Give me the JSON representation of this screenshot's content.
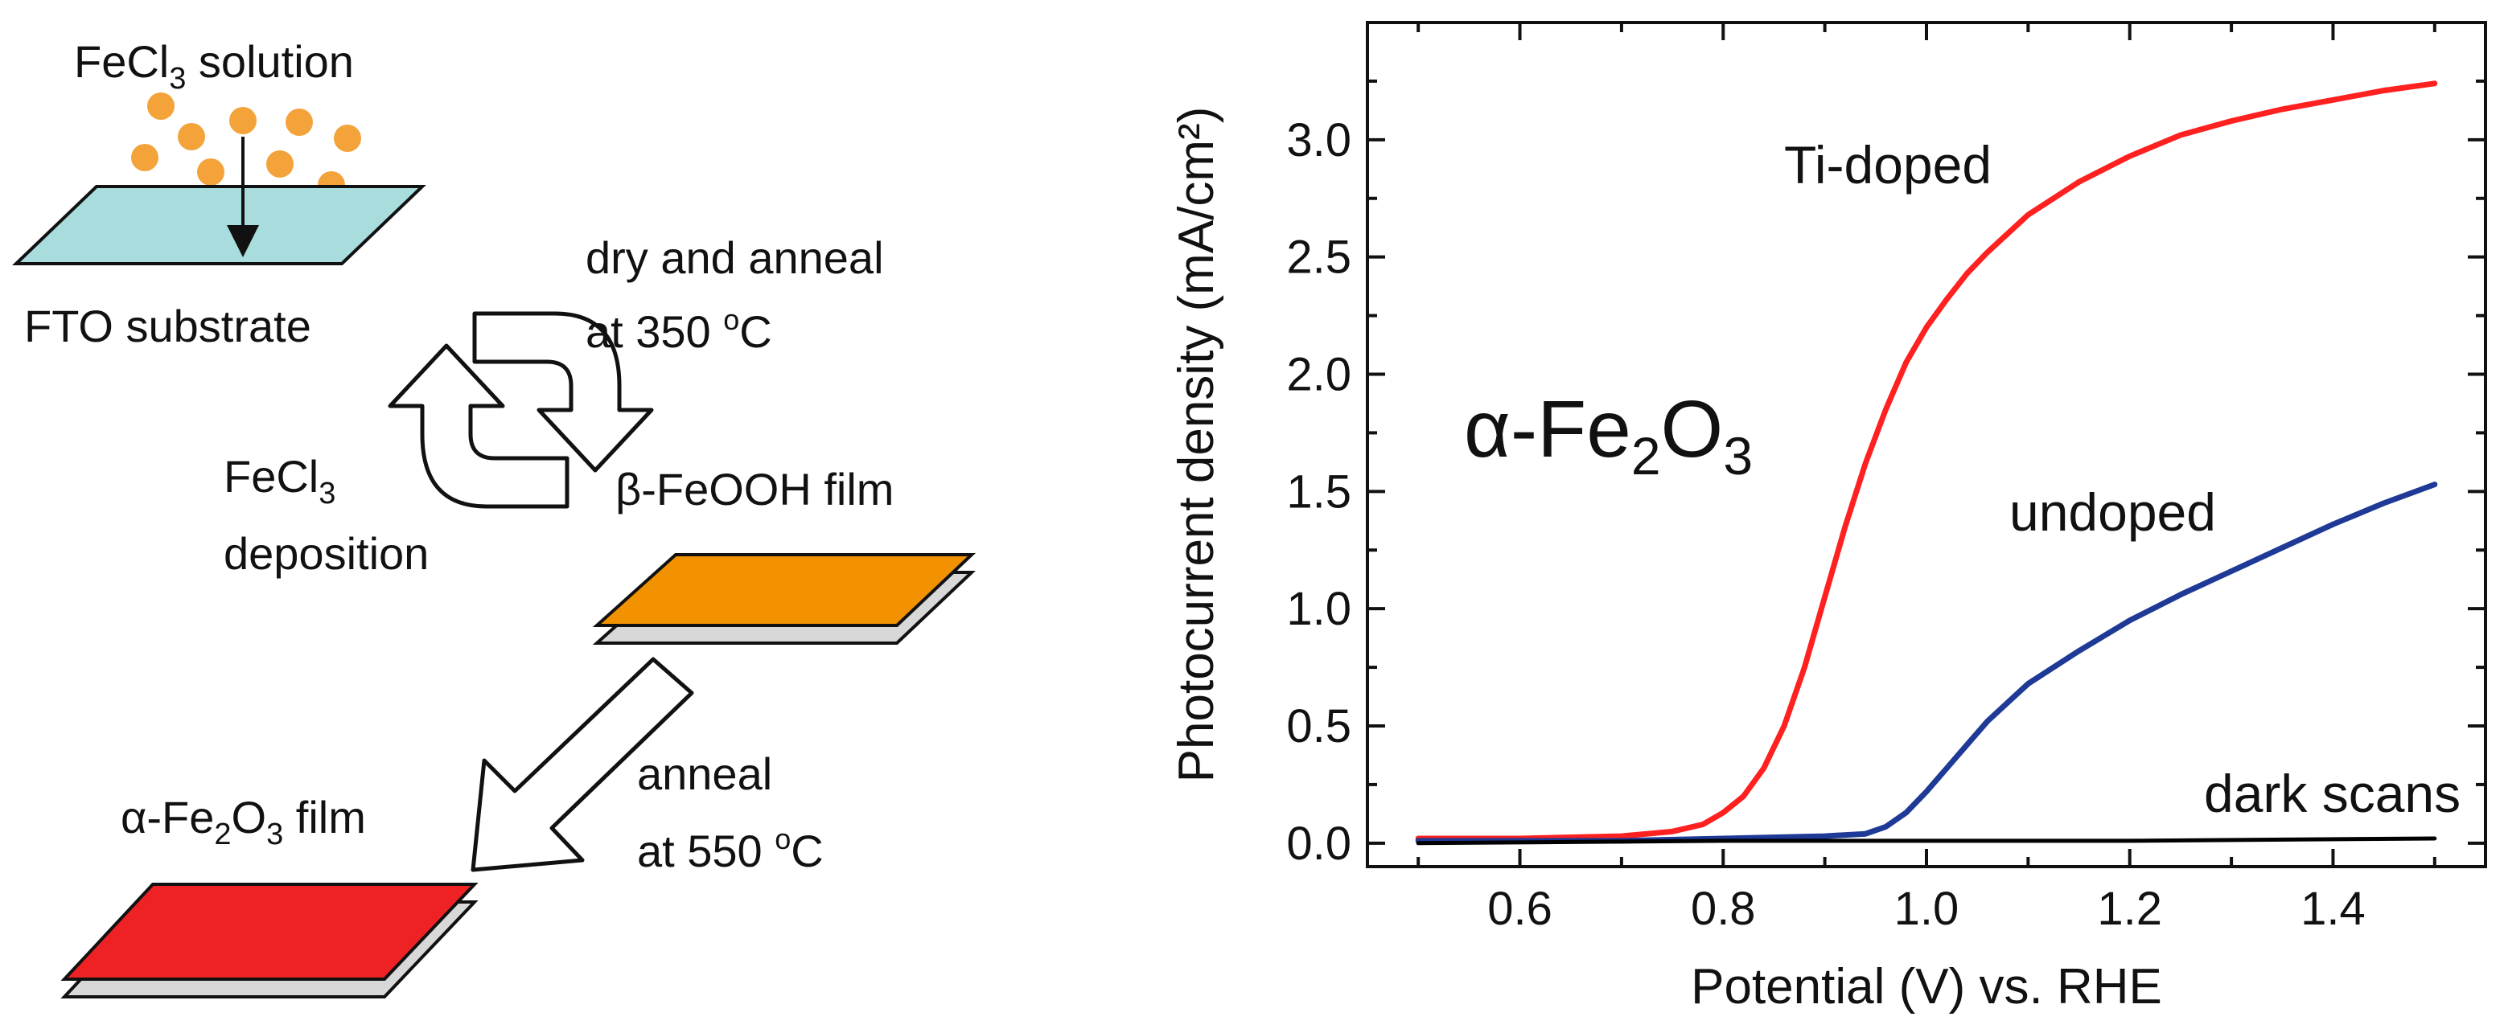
{
  "colors": {
    "droplet": "#F4A23A",
    "fto_substrate": "#A8DCDD",
    "beta_film": "#F39200",
    "alpha_film": "#EE2225",
    "ti_doped": "#FF2020",
    "undoped": "#1E3A96",
    "dark": "#000000"
  },
  "schematic": {
    "solution_label": {
      "pre": "FeCl",
      "sub": "3",
      "post": " solution"
    },
    "substrate_label": "FTO substrate",
    "dry_anneal": {
      "line1": "dry and anneal",
      "line2_pre": "at 350 ",
      "line2_sup": "o",
      "line2_post": "C"
    },
    "deposition": {
      "line1_pre": "FeCl",
      "line1_sub": "3",
      "line2": "deposition"
    },
    "beta_film_label": "β-FeOOH film",
    "anneal": {
      "line1": "anneal",
      "line2_pre": "at 550 ",
      "line2_sup": "o",
      "line2_post": "C"
    },
    "alpha_film_label": {
      "pre": "α-Fe",
      "sub1": "2",
      "mid": "O",
      "sub2": "3",
      "post": " film"
    }
  },
  "chart_data": {
    "type": "line",
    "title": "",
    "xlabel": "Potential (V) vs. RHE",
    "ylabel": "Photocurrent density (mA/cm²)",
    "xlim": [
      0.45,
      1.55
    ],
    "ylim": [
      -0.1,
      3.5
    ],
    "xticks": [
      0.6,
      0.8,
      1.0,
      1.2,
      1.4
    ],
    "xtick_labels": [
      "0.6",
      "0.8",
      "1.0",
      "1.2",
      "1.4"
    ],
    "yticks": [
      0.0,
      0.5,
      1.0,
      1.5,
      2.0,
      2.5,
      3.0
    ],
    "ytick_labels": [
      "0.0",
      "0.5",
      "1.0",
      "1.5",
      "2.0",
      "2.5",
      "3.0"
    ],
    "grid": false,
    "annotation": {
      "pre": "α-Fe",
      "sub1": "2",
      "mid": "O",
      "sub2": "3"
    },
    "series": [
      {
        "name": "Ti-doped",
        "color": "#FF2020",
        "x": [
          0.5,
          0.6,
          0.7,
          0.75,
          0.78,
          0.8,
          0.82,
          0.84,
          0.86,
          0.88,
          0.9,
          0.92,
          0.94,
          0.96,
          0.98,
          1.0,
          1.02,
          1.04,
          1.06,
          1.08,
          1.1,
          1.15,
          1.2,
          1.25,
          1.3,
          1.35,
          1.4,
          1.45,
          1.5
        ],
        "y": [
          0.02,
          0.02,
          0.03,
          0.05,
          0.08,
          0.13,
          0.2,
          0.32,
          0.5,
          0.75,
          1.05,
          1.35,
          1.62,
          1.85,
          2.05,
          2.2,
          2.32,
          2.43,
          2.52,
          2.6,
          2.68,
          2.82,
          2.93,
          3.02,
          3.08,
          3.13,
          3.17,
          3.21,
          3.24
        ]
      },
      {
        "name": "undoped",
        "color": "#1E3A96",
        "x": [
          0.5,
          0.6,
          0.7,
          0.8,
          0.9,
          0.94,
          0.96,
          0.98,
          1.0,
          1.02,
          1.04,
          1.06,
          1.08,
          1.1,
          1.15,
          1.2,
          1.25,
          1.3,
          1.35,
          1.4,
          1.45,
          1.5
        ],
        "y": [
          0.01,
          0.01,
          0.01,
          0.02,
          0.03,
          0.04,
          0.07,
          0.13,
          0.22,
          0.32,
          0.42,
          0.52,
          0.6,
          0.68,
          0.82,
          0.95,
          1.06,
          1.16,
          1.26,
          1.36,
          1.45,
          1.53
        ]
      },
      {
        "name": "dark scans",
        "color": "#000000",
        "x": [
          0.5,
          0.8,
          1.0,
          1.2,
          1.5
        ],
        "y": [
          0.0,
          0.01,
          0.01,
          0.01,
          0.02
        ]
      }
    ]
  }
}
